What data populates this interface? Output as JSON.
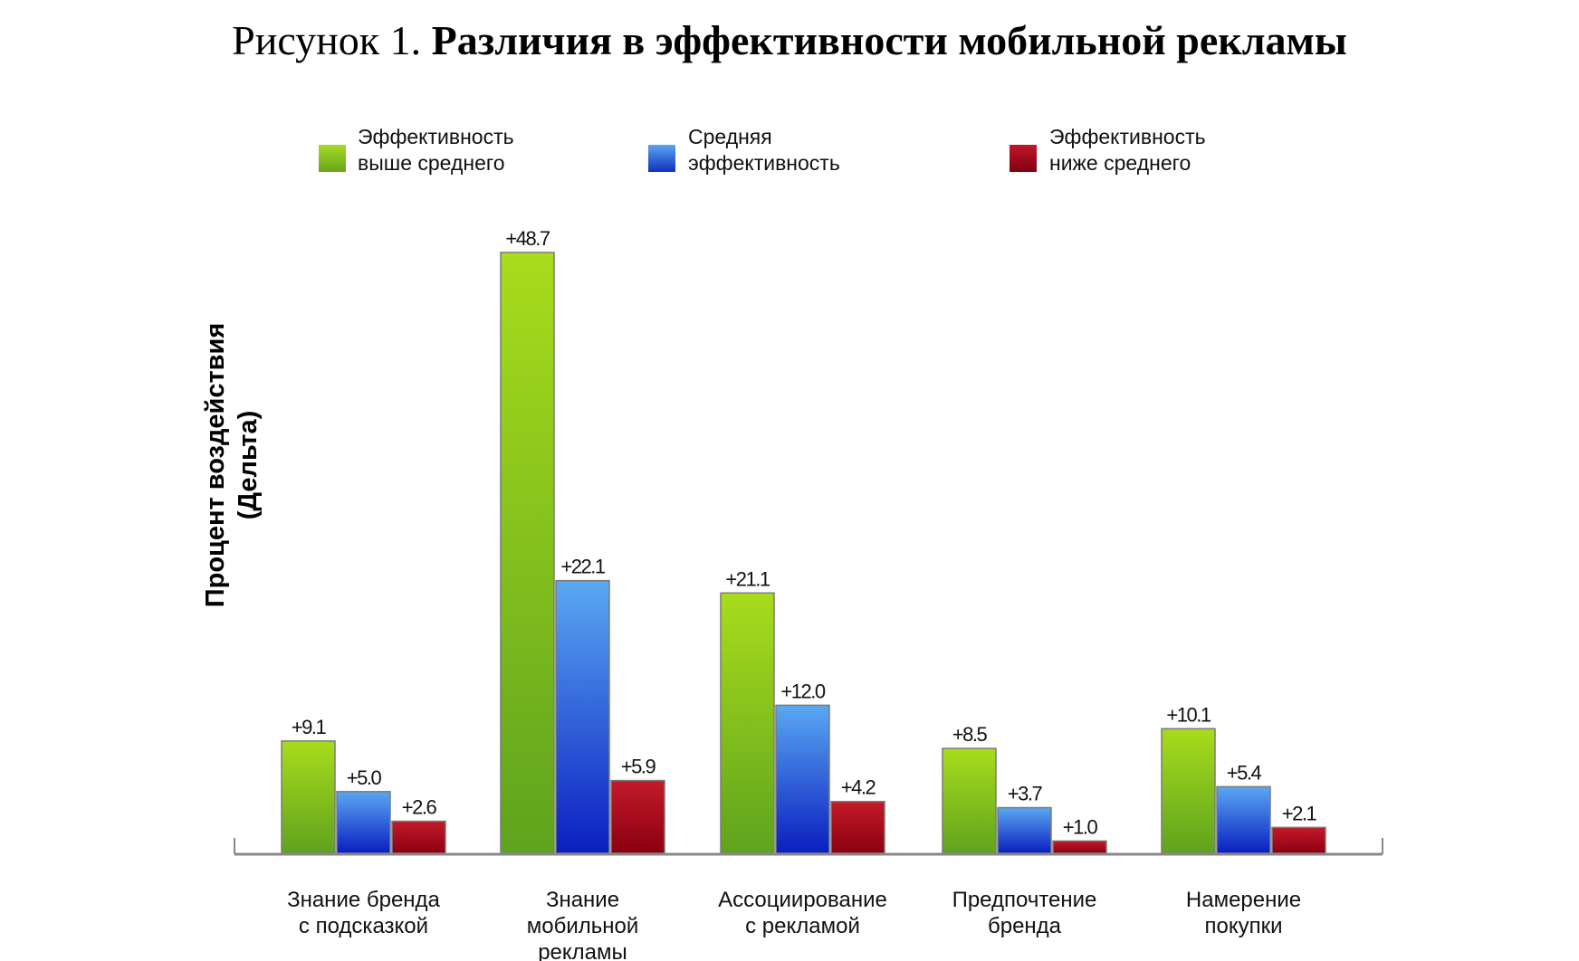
{
  "title": {
    "prefix": "Рисунок 1.",
    "main": "Различия в эффективности мобильной рекламы"
  },
  "chart_data": {
    "type": "bar",
    "title": "Рисунок 1. Различия в эффективности мобильной рекламы",
    "ylabel": "Процент воздействия (Дельта)",
    "ylabel_lines": [
      "Процент воздействия",
      "(Дельта)"
    ],
    "xlabel": "",
    "ylim": [
      0,
      50
    ],
    "grid": false,
    "legend_position": "top",
    "categories": [
      [
        "Знание бренда",
        "с подсказкой"
      ],
      [
        "Знание",
        "мобильной",
        "рекламы"
      ],
      [
        "Ассоциирование",
        "с рекламой"
      ],
      [
        "Предпочтение",
        "бренда"
      ],
      [
        "Намерение",
        "покупки"
      ]
    ],
    "series": [
      {
        "name": [
          "Эффективность",
          "выше среднего"
        ],
        "color": "#8cc81a",
        "values": [
          9.1,
          48.7,
          21.1,
          8.5,
          10.1
        ],
        "labels": [
          "+9.1",
          "+48.7",
          "+21.1",
          "+8.5",
          "+10.1"
        ]
      },
      {
        "name": [
          "Средняя",
          "эффективность"
        ],
        "color": "#3a7de0",
        "values": [
          5.0,
          22.1,
          12.0,
          3.7,
          5.4
        ],
        "labels": [
          "+5.0",
          "+22.1",
          "+12.0",
          "+3.7",
          "+5.4"
        ]
      },
      {
        "name": [
          "Эффективность",
          "ниже среднего"
        ],
        "color": "#a8101c",
        "values": [
          2.6,
          5.9,
          4.2,
          1.0,
          2.1
        ],
        "labels": [
          "+2.6",
          "+5.9",
          "+4.2",
          "+1.0",
          "+2.1"
        ]
      }
    ]
  }
}
